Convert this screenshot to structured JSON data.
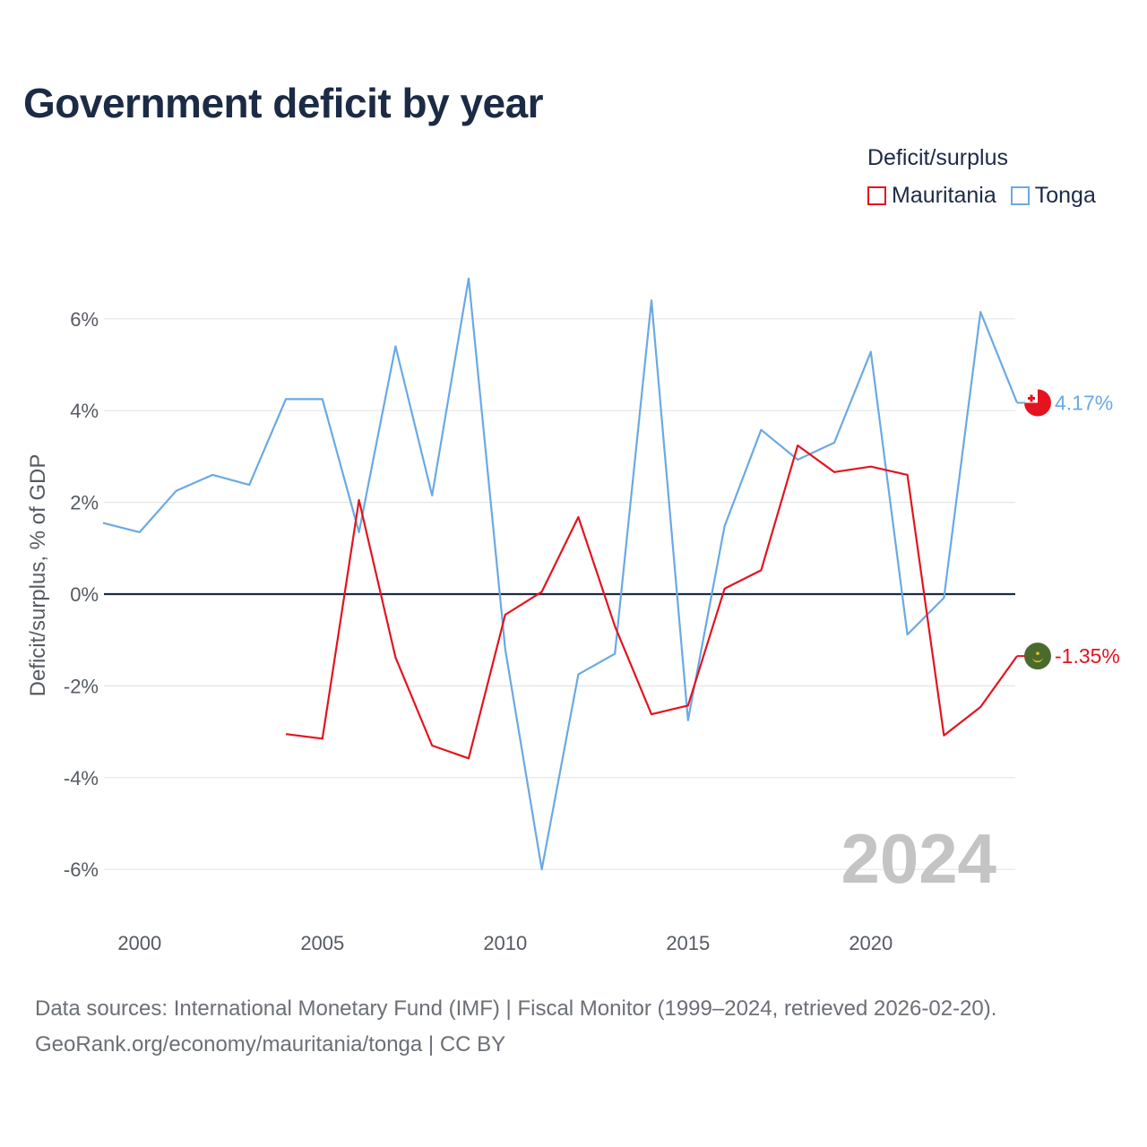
{
  "chart_data": {
    "type": "line",
    "title": "Government deficit by year",
    "xlabel": "",
    "ylabel": "Deficit/surplus, % of GDP",
    "legend_title": "Deficit/surplus",
    "legend_position": "top-right",
    "xlim": [
      1999,
      2024
    ],
    "ylim": [
      -7,
      7
    ],
    "x_ticks": [
      2000,
      2005,
      2010,
      2015,
      2020
    ],
    "x_tick_labels": [
      "2000",
      "2005",
      "2010",
      "2015",
      "2020"
    ],
    "y_ticks": [
      6,
      4,
      2,
      0,
      -2,
      -4,
      -6
    ],
    "y_tick_labels": [
      "6%",
      "4%",
      "2%",
      "0%",
      "-2%",
      "-4%",
      "-6%"
    ],
    "grid": true,
    "watermark": "2024",
    "x": [
      1999,
      2000,
      2001,
      2002,
      2003,
      2004,
      2005,
      2006,
      2007,
      2008,
      2009,
      2010,
      2011,
      2012,
      2013,
      2014,
      2015,
      2016,
      2017,
      2018,
      2019,
      2020,
      2021,
      2022,
      2023,
      2024
    ],
    "series": [
      {
        "name": "Mauritania",
        "color": "#e3141f",
        "values": [
          null,
          null,
          null,
          null,
          null,
          -3.05,
          -3.15,
          2.05,
          -1.38,
          -3.3,
          -3.58,
          -0.45,
          0.05,
          1.68,
          -0.7,
          -2.62,
          -2.43,
          0.12,
          0.52,
          3.24,
          2.66,
          2.78,
          2.6,
          -3.08,
          -2.46,
          -1.35
        ],
        "end_label": "-1.35%",
        "marker_icon": "mauritania-flag-icon"
      },
      {
        "name": "Tonga",
        "color": "#6aa9e4",
        "values": [
          1.55,
          1.35,
          2.25,
          2.6,
          2.38,
          4.25,
          4.25,
          1.35,
          5.4,
          2.15,
          6.88,
          -1.2,
          -6.0,
          -1.75,
          -1.3,
          6.4,
          -2.75,
          1.48,
          3.58,
          2.93,
          3.3,
          5.28,
          -0.88,
          -0.08,
          6.15,
          4.17
        ],
        "end_label": "4.17%",
        "marker_icon": "tonga-flag-icon"
      }
    ]
  },
  "source": {
    "line1": "Data sources: International Monetary Fund (IMF) | Fiscal Monitor (1999–2024, retrieved 2026-02-20).",
    "line2": "GeoRank.org/economy/mauritania/tonga | CC BY"
  }
}
